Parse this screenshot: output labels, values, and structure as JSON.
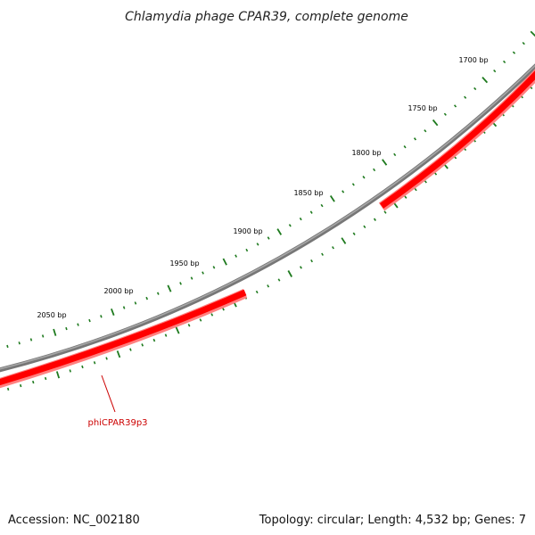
{
  "title": "Chlamydia phage CPAR39, complete genome",
  "footer": {
    "accession": "Accession: NC_002180",
    "summary": "Topology: circular; Length: 4,532 bp; Genes: 7"
  },
  "colors": {
    "backbone": "#8a8a8a",
    "gene": "#ff0000",
    "gene_edge": "#ff7a7a",
    "tick": "#1e7a1e",
    "label": "#cc0000"
  },
  "tick_labels": [
    {
      "bp": 1700,
      "label": "1700 bp"
    },
    {
      "bp": 1750,
      "label": "1750 bp"
    },
    {
      "bp": 1800,
      "label": "1800 bp"
    },
    {
      "bp": 1850,
      "label": "1850 bp"
    },
    {
      "bp": 1900,
      "label": "1900 bp"
    },
    {
      "bp": 1950,
      "label": "1950 bp"
    },
    {
      "bp": 2000,
      "label": "2000 bp"
    },
    {
      "bp": 2050,
      "label": "2050 bp"
    }
  ],
  "genes": [
    {
      "name": "phiCPAR39p3",
      "labeled": true
    }
  ]
}
